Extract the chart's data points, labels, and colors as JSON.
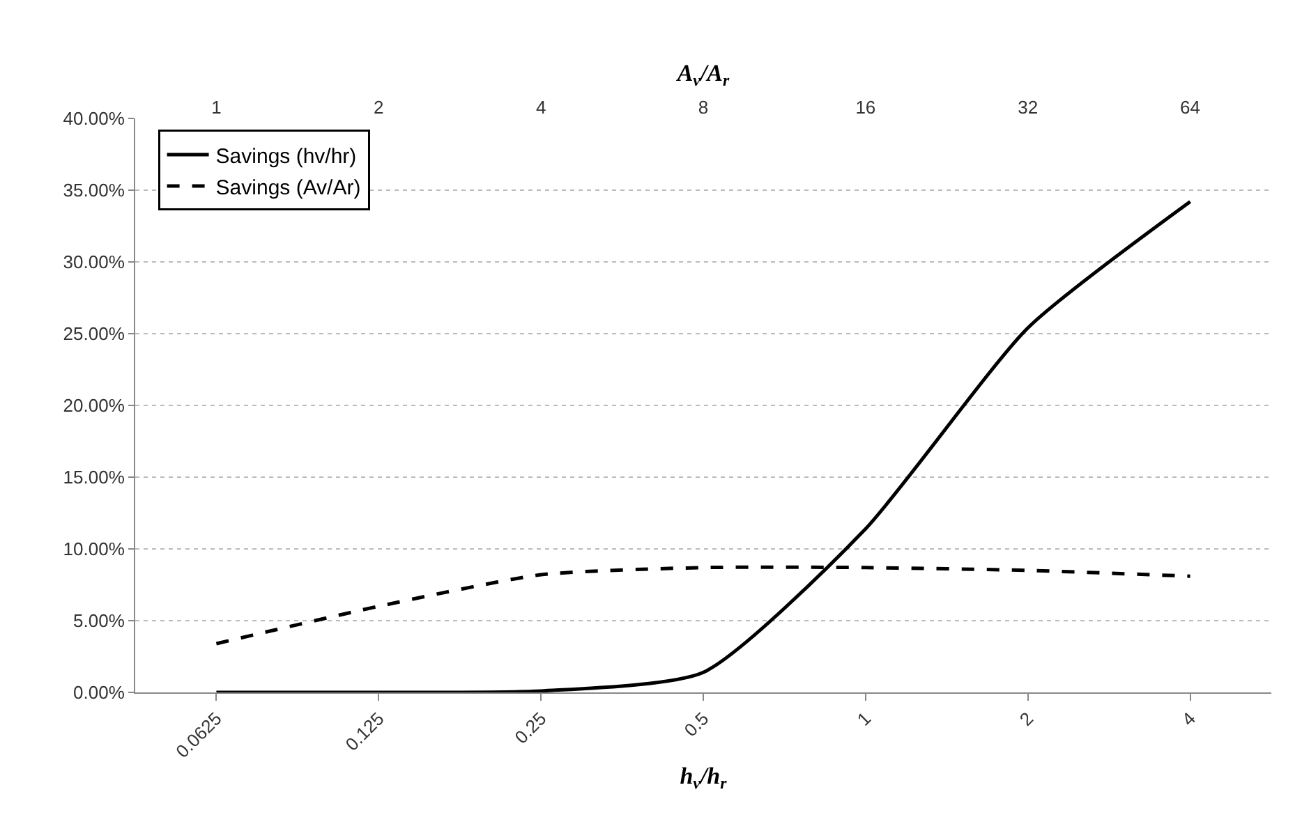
{
  "chart_data": {
    "type": "line",
    "xlabel": "h$_{v}$/h$_{r}$",
    "x2label": "A$_{v}$/A$_{r}$",
    "categories": [
      "0.0625",
      "0.125",
      "0.25",
      "0.5",
      "1",
      "2",
      "4"
    ],
    "x2lim": [
      1,
      64
    ],
    "x2ticks": [
      1,
      2,
      4,
      8,
      16,
      32,
      64
    ],
    "ylim": [
      0,
      40
    ],
    "yticks": [
      {
        "value": 0,
        "label": "0.00%"
      },
      {
        "value": 5,
        "label": "5.00%"
      },
      {
        "value": 10,
        "label": "10.00%"
      },
      {
        "value": 15,
        "label": "15.00%"
      },
      {
        "value": 20,
        "label": "20.00%"
      },
      {
        "value": 25,
        "label": "25.00%"
      },
      {
        "value": 30,
        "label": "30.00%"
      },
      {
        "value": 35,
        "label": "35.00%"
      },
      {
        "value": 40,
        "label": "40.00%"
      }
    ],
    "series": [
      {
        "name": "Savings (hv/hr)",
        "color": "#000000",
        "line_style": "solid",
        "values": [
          0,
          0,
          0.1,
          1.4,
          11.4,
          25.4,
          34.2
        ]
      },
      {
        "name": "Savings (Av/Ar)",
        "color": "#000000",
        "line_style": "dashed",
        "values": [
          3.4,
          6.0,
          8.2,
          8.7,
          8.7,
          8.5,
          8.1
        ]
      }
    ],
    "grid": "y",
    "legend": "top left",
    "marker": "none",
    "log": "x2"
  }
}
